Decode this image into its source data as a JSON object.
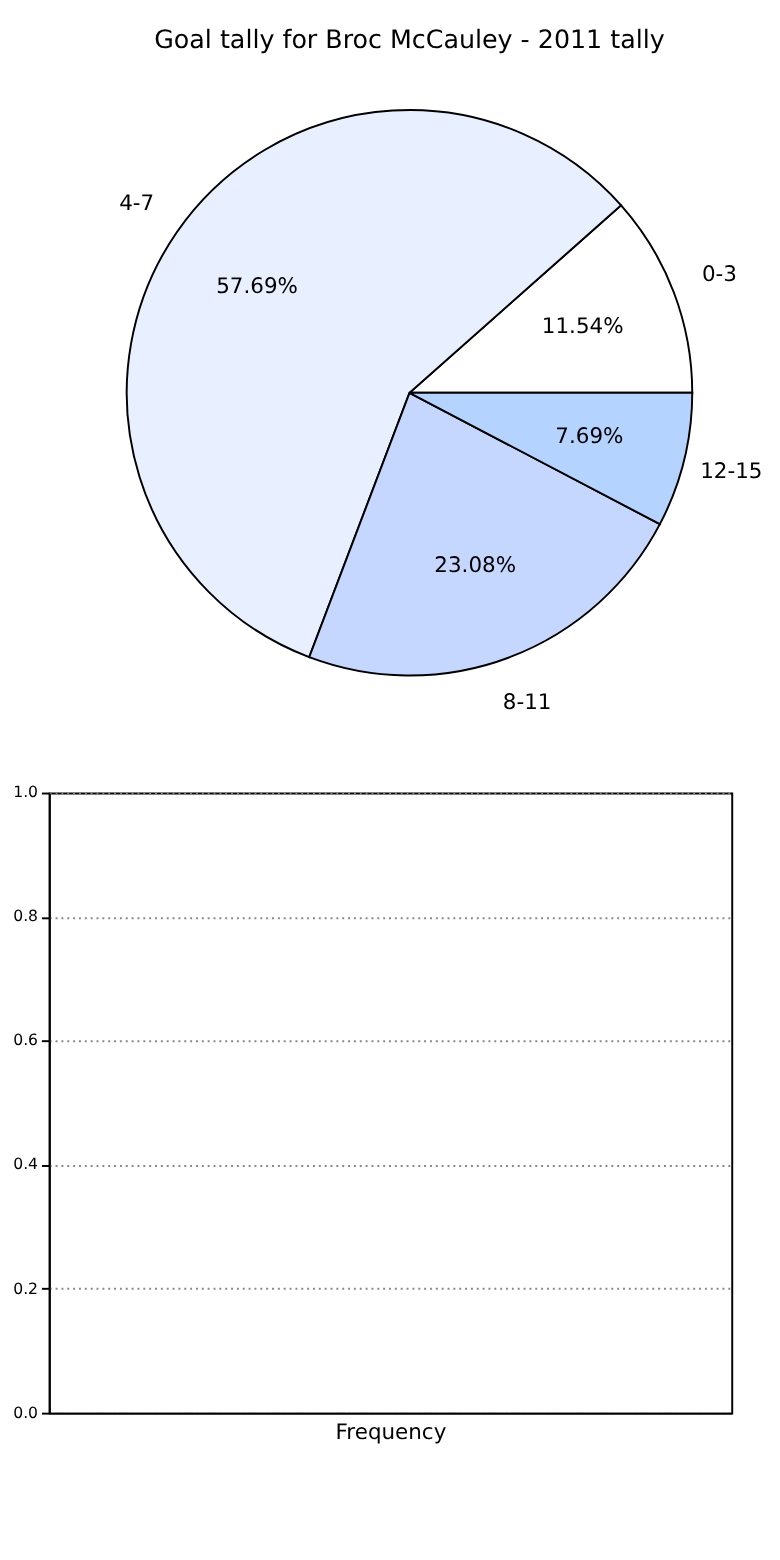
{
  "chart_data": [
    {
      "type": "pie",
      "title": "Goal tally for Broc McCauley - 2011 tally",
      "categories": [
        "0-3",
        "4-7",
        "8-11",
        "12-15"
      ],
      "values": [
        11.54,
        57.69,
        23.08,
        7.69
      ],
      "colors": [
        "#ffffff",
        "#e8efff",
        "#c6d7ff",
        "#b5d3ff"
      ],
      "value_labels": [
        "11.54%",
        "57.69%",
        "23.08%",
        "7.69%"
      ]
    },
    {
      "type": "bar",
      "xlabel": "Frequency",
      "categories": [
        null
      ],
      "values": [
        0
      ],
      "ylim": [
        0,
        1
      ],
      "yticks": [
        {
          "value": 0,
          "label": "0.0"
        },
        {
          "value": 0.2,
          "label": "0.2"
        },
        {
          "value": 0.4,
          "label": "0.4"
        },
        {
          "value": 0.6,
          "label": "0.6"
        },
        {
          "value": 0.8,
          "label": "0.8"
        },
        {
          "value": 1,
          "label": "1.0"
        }
      ],
      "grid": "y",
      "tick_labels": "y"
    }
  ]
}
